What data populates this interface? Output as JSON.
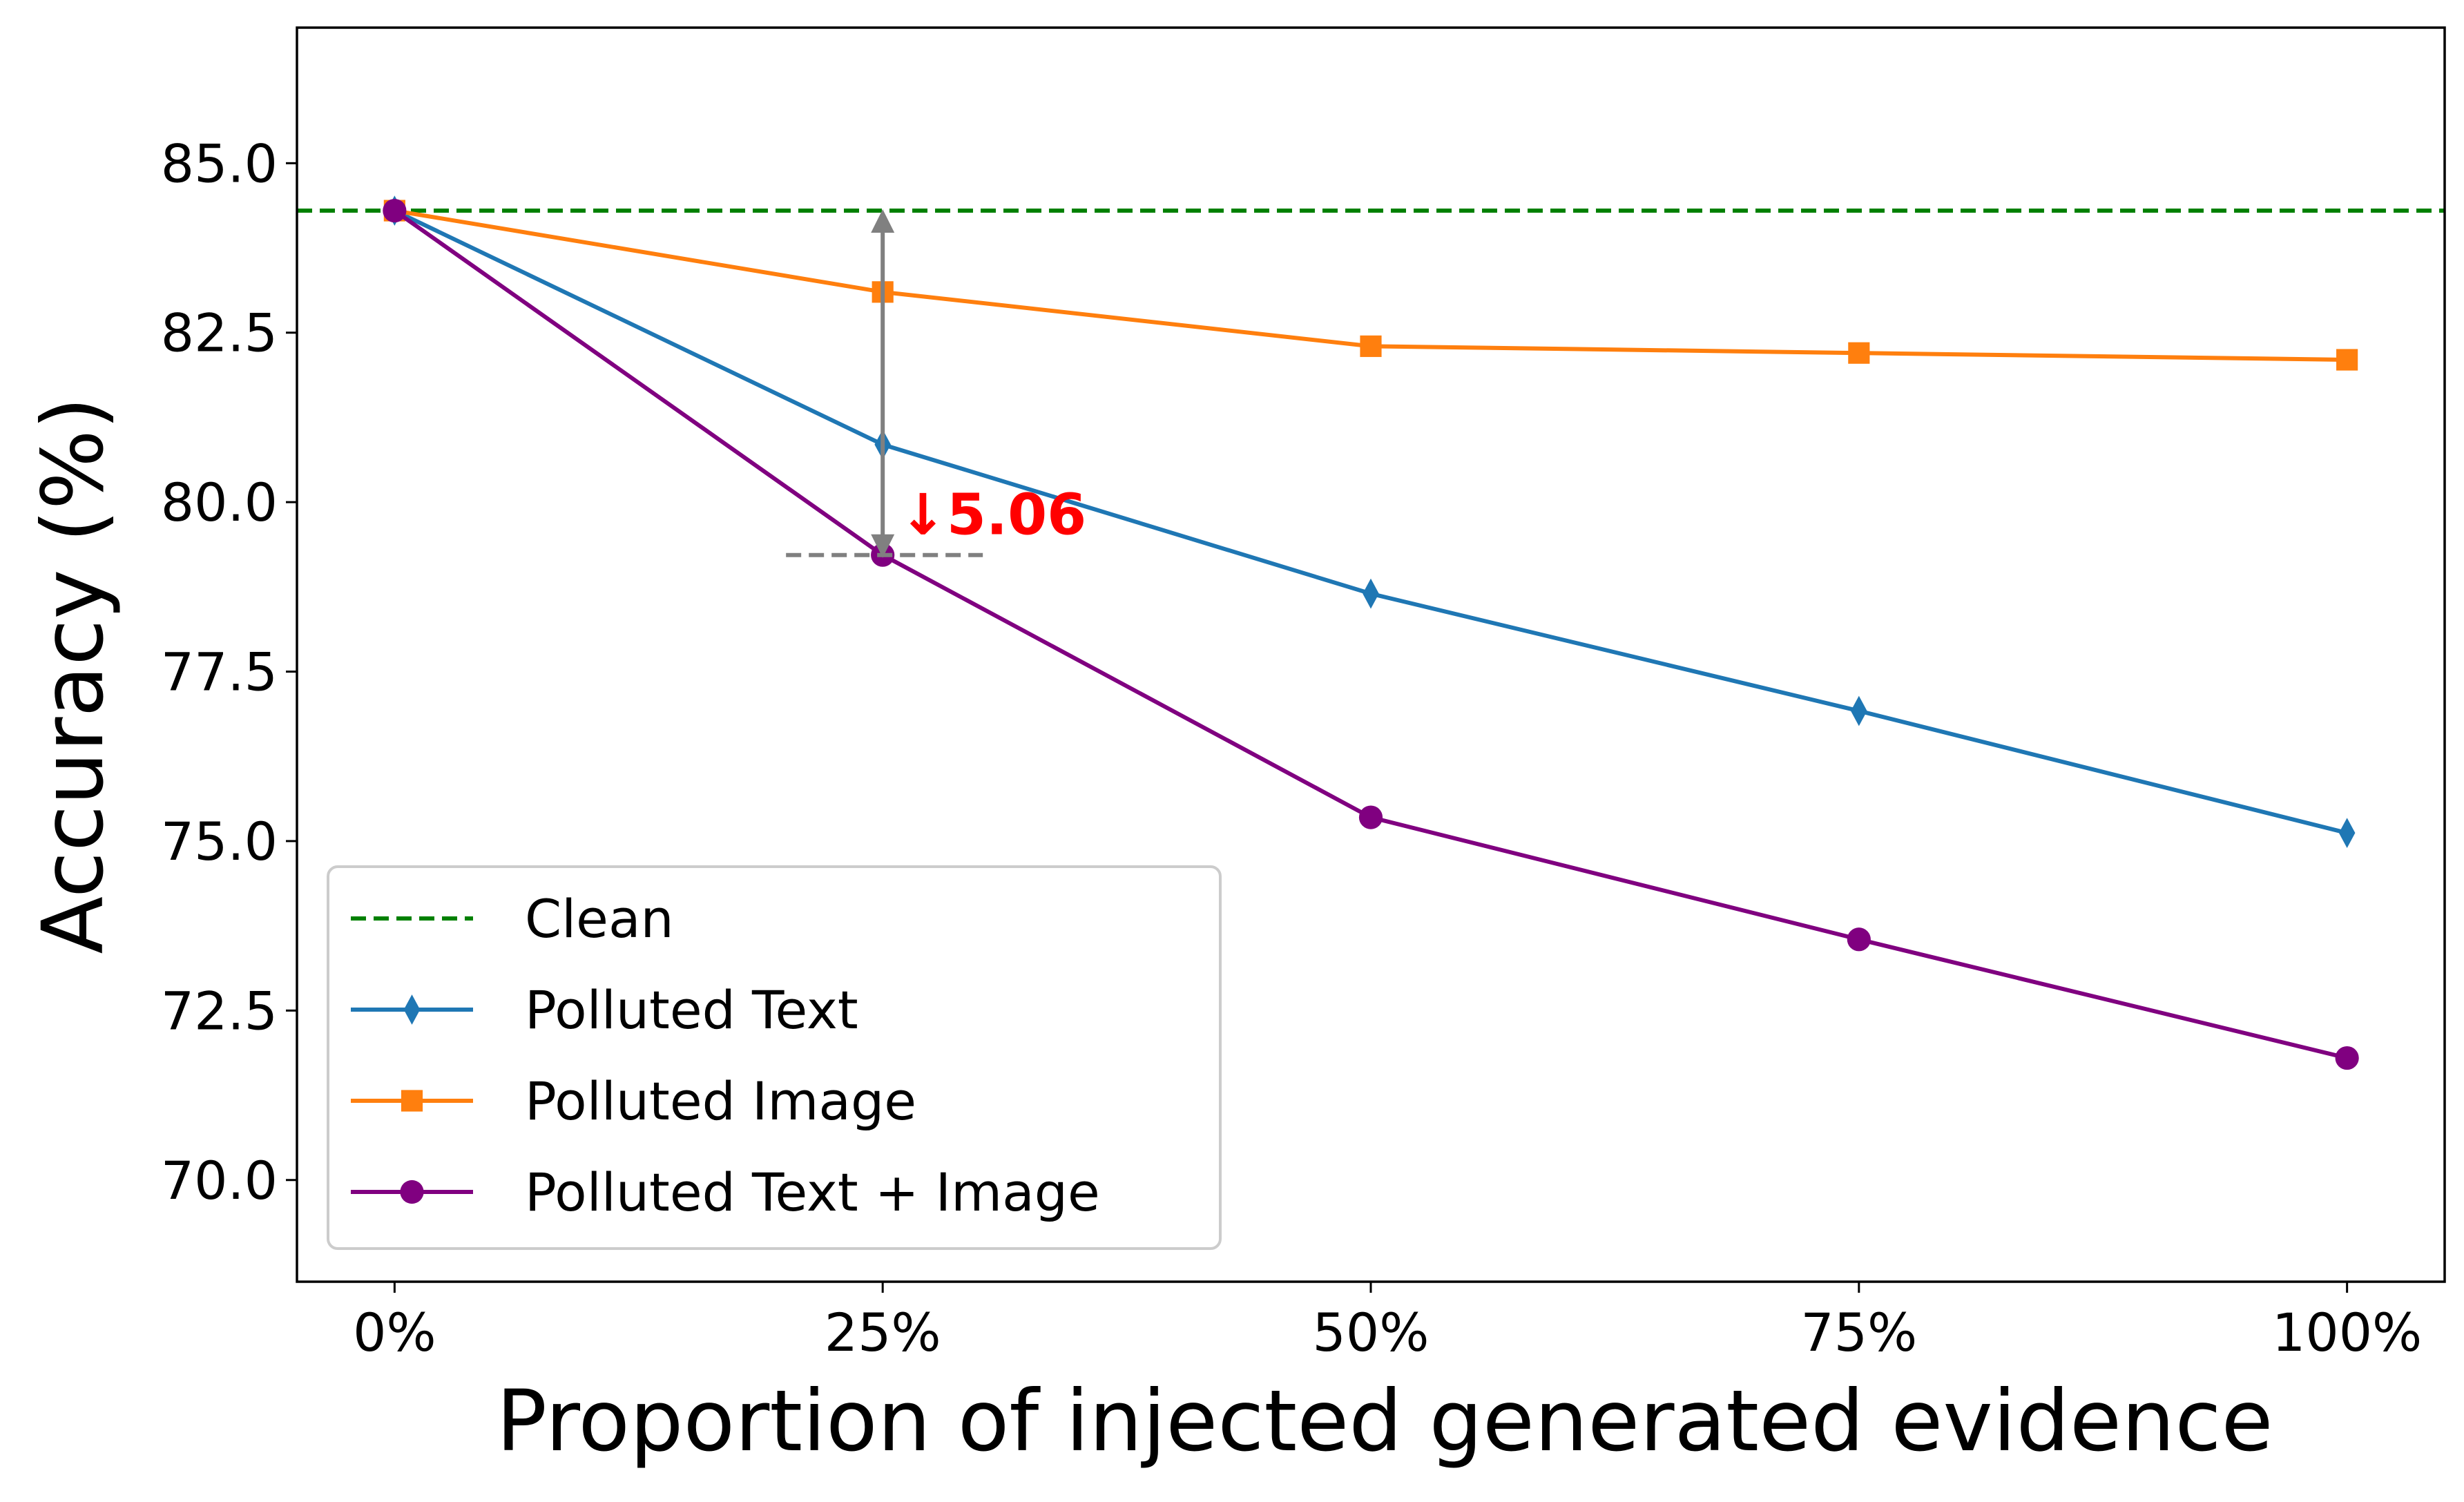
{
  "chart_data": {
    "type": "line",
    "xlabel": "Proportion of injected generated evidence",
    "ylabel": "Accuracy (%)",
    "categories": [
      "0%",
      "25%",
      "50%",
      "75%",
      "100%"
    ],
    "ylim": [
      68.5,
      87.0
    ],
    "yticks": [
      "70.0",
      "72.5",
      "75.0",
      "77.5",
      "80.0",
      "82.5",
      "85.0"
    ],
    "grid": false,
    "legend_position": "lower-left",
    "clean": {
      "name": "Clean",
      "value": 84.3,
      "color": "#008000",
      "style": "dashed"
    },
    "series": [
      {
        "name": "Polluted Text",
        "color": "#1f77b4",
        "marker": "diamond",
        "values": [
          84.3,
          80.85,
          78.65,
          76.92,
          75.12
        ]
      },
      {
        "name": "Polluted Image",
        "color": "#ff7f0e",
        "marker": "square",
        "values": [
          84.3,
          83.1,
          82.3,
          82.2,
          82.1
        ]
      },
      {
        "name": "Polluted Text + Image",
        "color": "#800080",
        "marker": "circle",
        "values": [
          84.3,
          79.22,
          75.35,
          73.55,
          71.8
        ]
      }
    ],
    "annotation": {
      "text": "↓5.06",
      "at_category": "25%",
      "from": 84.28,
      "to": 79.22,
      "color": "#ff0000",
      "arrow_color": "#808080"
    }
  }
}
